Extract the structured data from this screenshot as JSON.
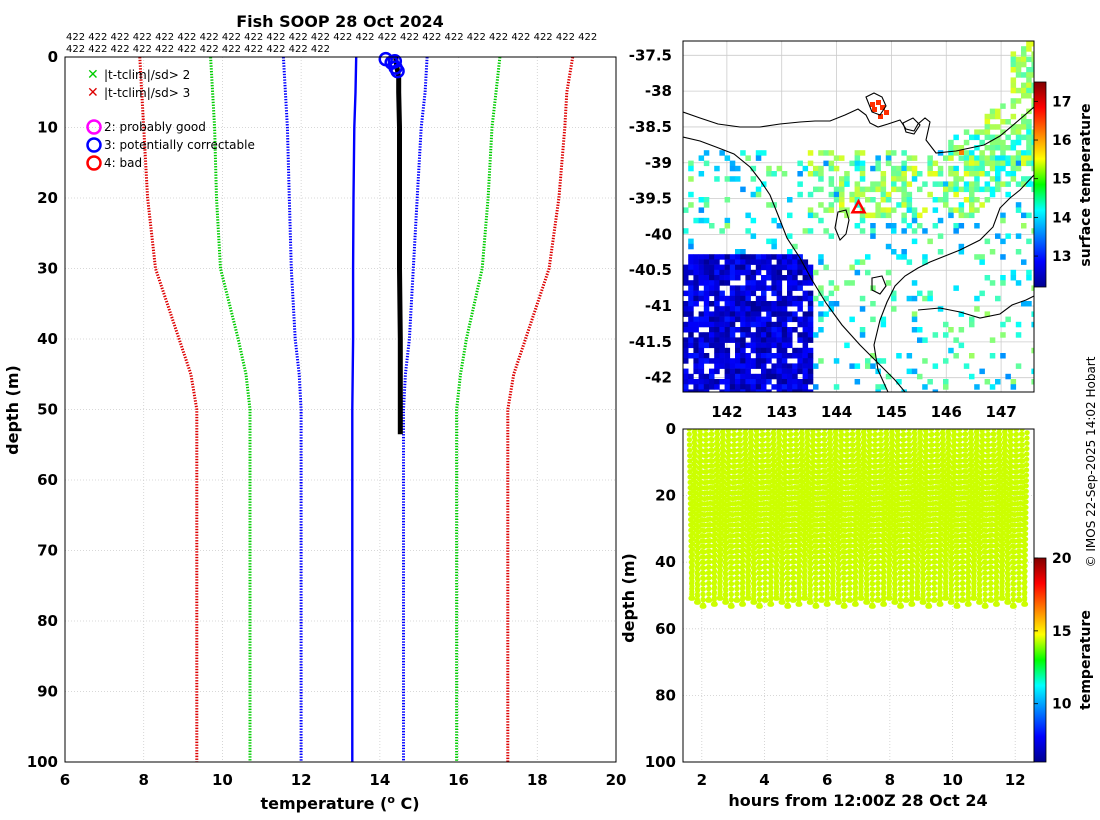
{
  "main": {
    "title": "Fish SOOP 28 Oct 2024",
    "count_row1": "422 422 422 422 422 422 422 422 422 422 422 422 422 422 422 422 422 422 422 422 422 422 422 422",
    "count_row2": "422 422 422 422 422 422 422 422 422 422 422 422",
    "legend": [
      "|t-tclim|/sd> 2",
      "|t-tclim|/sd> 3",
      "2: probably good",
      "3: potentially correctable",
      "4: bad"
    ],
    "colors": {
      "sd2": "#00cc00",
      "sd3": "#dd0000",
      "flag2": "#ff00ff",
      "flag3": "#0000ff",
      "flag4": "#ff0000"
    }
  },
  "map": {
    "cbar_label": "surface temperature"
  },
  "timeseries": {
    "cbar_label": "temperature"
  },
  "watermark": "© IMOS 22-Sep-2025 14:02 Hobart",
  "chart_data": [
    {
      "type": "line",
      "title": "Fish SOOP 28 Oct 2024",
      "xlabel": "temperature (° C)",
      "ylabel": "depth (m)",
      "xlim": [
        6,
        20
      ],
      "ylim": [
        100,
        0
      ],
      "xticks": [
        "6",
        "8",
        "10",
        "12",
        "14",
        "16",
        "18",
        "20"
      ],
      "yticks": [
        "0",
        "10",
        "20",
        "30",
        "40",
        "50",
        "60",
        "70",
        "80",
        "90",
        "100"
      ],
      "series": [
        {
          "name": "clim - 3sd",
          "color": "#dd0000",
          "depth": [
            0,
            5,
            10,
            20,
            30,
            40,
            45,
            50,
            100
          ],
          "temp": [
            7.9,
            7.95,
            8.0,
            8.1,
            8.3,
            8.9,
            9.2,
            9.35,
            9.35
          ]
        },
        {
          "name": "clim - 2sd",
          "color": "#00cc00",
          "depth": [
            0,
            5,
            10,
            20,
            30,
            40,
            45,
            50,
            100
          ],
          "temp": [
            9.7,
            9.75,
            9.8,
            9.85,
            9.95,
            10.4,
            10.6,
            10.7,
            10.7
          ]
        },
        {
          "name": "clim - 1sd",
          "color": "#0000ff",
          "depth": [
            0,
            5,
            10,
            20,
            30,
            40,
            45,
            50,
            100
          ],
          "temp": [
            11.55,
            11.6,
            11.65,
            11.7,
            11.75,
            11.85,
            11.95,
            12.0,
            12.0
          ]
        },
        {
          "name": "clim mean",
          "color": "#0000ff",
          "depth": [
            0,
            5,
            10,
            20,
            30,
            40,
            50,
            100
          ],
          "temp": [
            13.4,
            13.38,
            13.35,
            13.33,
            13.32,
            13.32,
            13.3,
            13.3
          ]
        },
        {
          "name": "clim + 1sd",
          "color": "#0000ff",
          "depth": [
            0,
            5,
            10,
            20,
            30,
            40,
            45,
            50,
            100
          ],
          "temp": [
            15.2,
            15.15,
            15.05,
            14.95,
            14.85,
            14.75,
            14.65,
            14.6,
            14.6
          ]
        },
        {
          "name": "clim + 2sd",
          "color": "#00cc00",
          "depth": [
            0,
            5,
            10,
            20,
            30,
            40,
            45,
            50,
            100
          ],
          "temp": [
            17.05,
            16.95,
            16.85,
            16.75,
            16.6,
            16.2,
            16.05,
            15.95,
            15.95
          ]
        },
        {
          "name": "clim + 3sd",
          "color": "#dd0000",
          "depth": [
            0,
            5,
            10,
            20,
            30,
            40,
            45,
            50,
            100
          ],
          "temp": [
            18.9,
            18.75,
            18.7,
            18.55,
            18.3,
            17.7,
            17.4,
            17.25,
            17.25
          ]
        },
        {
          "name": "profiles",
          "color": "#000000",
          "depth": [
            0,
            1,
            2,
            3,
            5,
            10,
            20,
            30,
            40,
            50,
            53.5
          ],
          "temp": [
            14.4,
            14.42,
            14.45,
            14.48,
            14.48,
            14.5,
            14.5,
            14.5,
            14.52,
            14.52,
            14.52
          ]
        }
      ],
      "flag3_points": [
        {
          "temp": 14.15,
          "depth": 0.3
        },
        {
          "temp": 14.3,
          "depth": 0.8
        },
        {
          "temp": 14.4,
          "depth": 1.5
        },
        {
          "temp": 14.45,
          "depth": 2.0
        },
        {
          "temp": 14.38,
          "depth": 0.6
        }
      ]
    },
    {
      "type": "heatmap",
      "xlim": [
        141.2,
        147.6
      ],
      "ylim": [
        -42.2,
        -37.3
      ],
      "xticks": [
        "142",
        "143",
        "144",
        "145",
        "146",
        "147"
      ],
      "yticks": [
        "-37.5",
        "-38",
        "-38.5",
        "-39",
        "-39.5",
        "-40",
        "-40.5",
        "-41",
        "-41.5",
        "-42"
      ],
      "colorbar": {
        "label": "surface temperature",
        "range": [
          12.2,
          17.5
        ],
        "ticks": [
          "13",
          "14",
          "15",
          "16",
          "17"
        ]
      },
      "marker": {
        "lon": 144.4,
        "lat": -39.62,
        "color": "#ff0000"
      }
    },
    {
      "type": "scatter",
      "xlabel": "hours from 12:00Z 28 Oct 24",
      "ylabel": "depth (m)",
      "xlim": [
        1.4,
        12.6
      ],
      "ylim": [
        100,
        0
      ],
      "xticks": [
        "2",
        "4",
        "6",
        "8",
        "10",
        "12"
      ],
      "yticks": [
        "0",
        "20",
        "40",
        "60",
        "80",
        "100"
      ],
      "casts": {
        "start_hour": 1.6,
        "end_hour": 12.4,
        "count": 60,
        "max_depth": 51.5
      },
      "point_color": "#ccff00",
      "colorbar": {
        "label": "temperature",
        "range": [
          6,
          20
        ],
        "ticks": [
          "10",
          "15",
          "20"
        ]
      }
    }
  ]
}
